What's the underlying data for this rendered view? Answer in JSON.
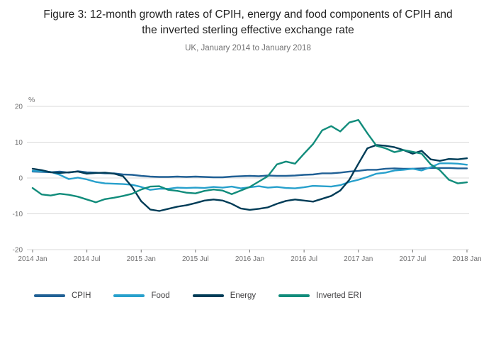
{
  "title": "Figure 3: 12-month growth rates of CPIH, energy and food components of CPIH and the inverted sterling effective exchange rate",
  "subtitle": "UK, January 2014 to January 2018",
  "chart_data": {
    "type": "line",
    "title": "Figure 3: 12-month growth rates of CPIH, energy and food components of CPIH and the inverted sterling effective exchange rate",
    "subtitle": "UK, January 2014 to January 2018",
    "ylabel": "%",
    "ylim": [
      -20,
      20
    ],
    "y_ticks": [
      20,
      10,
      0,
      -10,
      -20
    ],
    "grid": "horizontal",
    "legend_position": "bottom",
    "x_tick_labels": [
      "2014 Jan",
      "2014 Jul",
      "2015 Jan",
      "2015 Jul",
      "2016 Jan",
      "2016 Jul",
      "2017 Jan",
      "2017 Jul",
      "2018 Jan"
    ],
    "x_tick_months": [
      0,
      6,
      12,
      18,
      24,
      30,
      36,
      42,
      48
    ],
    "x_months_total": 48,
    "series": [
      {
        "name": "CPIH",
        "color": "#206095",
        "values": [
          1.8,
          1.7,
          1.6,
          1.8,
          1.5,
          1.9,
          1.6,
          1.5,
          1.3,
          1.3,
          1.0,
          0.9,
          0.6,
          0.4,
          0.3,
          0.3,
          0.4,
          0.3,
          0.4,
          0.3,
          0.2,
          0.2,
          0.4,
          0.5,
          0.6,
          0.5,
          0.7,
          0.6,
          0.6,
          0.7,
          0.9,
          1.0,
          1.3,
          1.3,
          1.5,
          1.8,
          2.0,
          2.3,
          2.3,
          2.6,
          2.7,
          2.6,
          2.6,
          2.7,
          2.8,
          2.8,
          2.8,
          2.7,
          2.7
        ]
      },
      {
        "name": "Food",
        "color": "#27A0CC",
        "values": [
          2.0,
          1.9,
          1.7,
          0.9,
          -0.3,
          0.1,
          -0.4,
          -1.1,
          -1.5,
          -1.6,
          -1.7,
          -1.9,
          -2.5,
          -3.3,
          -3.0,
          -3.0,
          -2.7,
          -2.8,
          -2.7,
          -2.8,
          -2.5,
          -2.7,
          -2.4,
          -2.9,
          -2.6,
          -2.3,
          -2.7,
          -2.5,
          -2.8,
          -2.9,
          -2.6,
          -2.2,
          -2.3,
          -2.4,
          -2.0,
          -1.1,
          -0.5,
          0.3,
          1.2,
          1.5,
          2.1,
          2.3,
          2.6,
          2.1,
          3.0,
          4.1,
          4.1,
          4.0,
          3.7
        ]
      },
      {
        "name": "Energy",
        "color": "#003C57",
        "values": [
          2.6,
          2.2,
          1.6,
          1.4,
          1.6,
          1.8,
          1.2,
          1.4,
          1.5,
          1.2,
          0.5,
          -2.5,
          -6.5,
          -8.8,
          -9.2,
          -8.6,
          -8.0,
          -7.6,
          -7.0,
          -6.3,
          -6.0,
          -6.3,
          -7.2,
          -8.5,
          -8.9,
          -8.6,
          -8.2,
          -7.2,
          -6.4,
          -6.0,
          -6.3,
          -6.6,
          -5.8,
          -5.0,
          -3.5,
          -0.5,
          4.0,
          8.3,
          9.2,
          9.0,
          8.6,
          7.8,
          6.8,
          7.6,
          5.2,
          4.8,
          5.3,
          5.2,
          5.5
        ]
      },
      {
        "name": "Inverted ERI",
        "color": "#118C7B",
        "values": [
          -2.8,
          -4.6,
          -4.9,
          -4.4,
          -4.7,
          -5.2,
          -6.0,
          -6.8,
          -5.9,
          -5.5,
          -5.0,
          -4.4,
          -3.2,
          -2.4,
          -2.3,
          -3.3,
          -3.6,
          -4.1,
          -4.3,
          -3.6,
          -3.2,
          -3.5,
          -4.5,
          -3.5,
          -2.5,
          -1.0,
          0.5,
          3.8,
          4.6,
          4.0,
          6.8,
          9.5,
          13.3,
          14.5,
          13.0,
          15.5,
          16.2,
          12.5,
          9.0,
          8.3,
          7.2,
          7.8,
          7.3,
          6.8,
          3.8,
          2.2,
          -0.5,
          -1.5,
          -1.2
        ]
      }
    ],
    "colors": {
      "grid": "#d9d9d9",
      "axis_text": "#707071",
      "title_text": "#222222",
      "legend_text": "#414042"
    }
  }
}
